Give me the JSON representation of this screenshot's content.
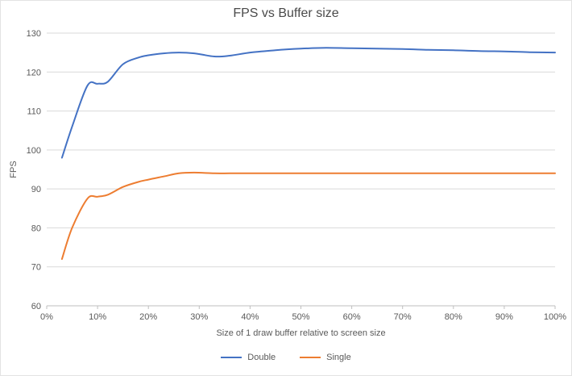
{
  "chart_data": {
    "type": "line",
    "title": "FPS vs Buffer size",
    "xlabel": "Size of 1 draw buffer relative to screen size",
    "ylabel": "FPS",
    "xlim": [
      0,
      100
    ],
    "ylim": [
      60,
      130
    ],
    "x_ticks": [
      "0%",
      "10%",
      "20%",
      "30%",
      "40%",
      "50%",
      "60%",
      "70%",
      "80%",
      "90%",
      "100%"
    ],
    "y_ticks": [
      60,
      70,
      80,
      90,
      100,
      110,
      120,
      130
    ],
    "grid": "horizontal",
    "legend_position": "bottom",
    "text_color": "#595959",
    "grid_color": "#d9d9d9",
    "axis_color": "#bfbfbf",
    "series": [
      {
        "name": "Double",
        "color": "#4472c4",
        "x": [
          3,
          5,
          8,
          10,
          12,
          15,
          18,
          20,
          23,
          26,
          29,
          33,
          36,
          40,
          45,
          50,
          55,
          60,
          65,
          70,
          75,
          80,
          85,
          90,
          95,
          100
        ],
        "y": [
          98,
          106,
          116.5,
          117,
          117.5,
          122,
          123.7,
          124.3,
          124.8,
          125,
          124.8,
          124,
          124.2,
          125,
          125.6,
          126,
          126.2,
          126.1,
          126,
          125.9,
          125.7,
          125.6,
          125.4,
          125.3,
          125.1,
          125
        ]
      },
      {
        "name": "Single",
        "color": "#ed7d31",
        "x": [
          3,
          5,
          8,
          10,
          12,
          15,
          18,
          20,
          23,
          26,
          29,
          33,
          36,
          40,
          45,
          50,
          55,
          60,
          65,
          70,
          75,
          80,
          85,
          90,
          95,
          100
        ],
        "y": [
          72,
          80,
          87.5,
          88,
          88.5,
          90.5,
          91.8,
          92.4,
          93.2,
          94,
          94.2,
          94,
          94,
          94,
          94,
          94,
          94,
          94,
          94,
          94,
          94,
          94,
          94,
          94,
          94,
          94
        ]
      }
    ]
  }
}
